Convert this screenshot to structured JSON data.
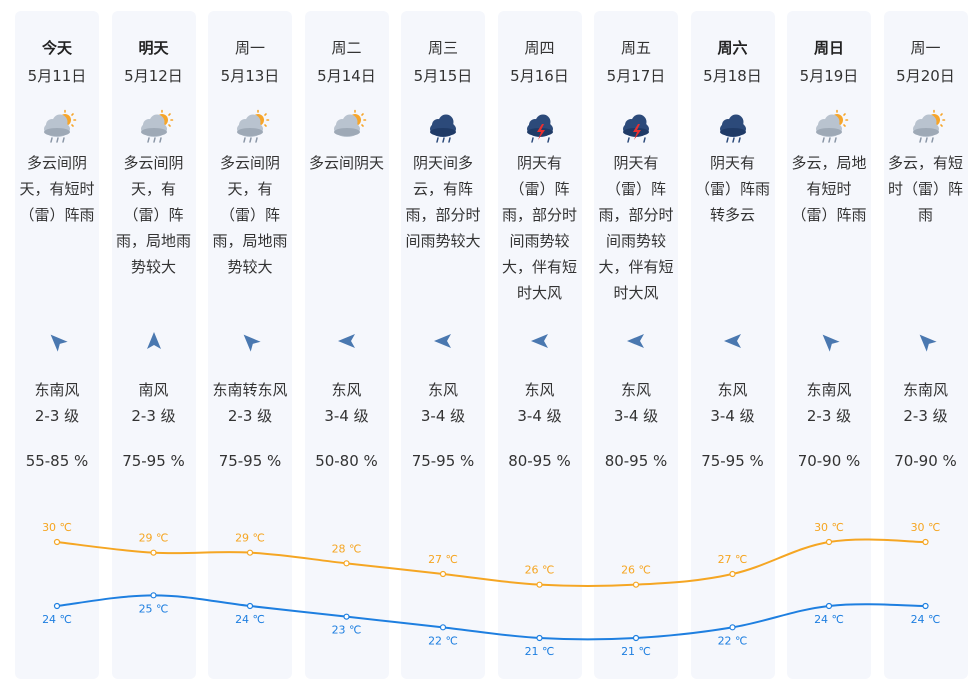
{
  "colors": {
    "high_line": "#f5a623",
    "low_line": "#1e7fe0",
    "column_bg": "#f5f7fc",
    "wind_arrow": "#4a78b0"
  },
  "days": [
    {
      "name": "今天",
      "bold": true,
      "date": "5月11日",
      "icon": "partly-cloudy-rain-icon",
      "desc": "多云间阴天，有短时（雷）阵雨",
      "wind_dir": "东南风",
      "wind_level": "2-3 级",
      "wind_arrow": "southeast-wind-arrow-icon",
      "humidity": "55-85 %"
    },
    {
      "name": "明天",
      "bold": true,
      "date": "5月12日",
      "icon": "partly-cloudy-rain-icon",
      "desc": "多云间阴天，有（雷）阵雨，局地雨势较大",
      "wind_dir": "南风",
      "wind_level": "2-3 级",
      "wind_arrow": "south-wind-arrow-icon",
      "humidity": "75-95 %"
    },
    {
      "name": "周一",
      "bold": false,
      "date": "5月13日",
      "icon": "partly-cloudy-rain-icon",
      "desc": "多云间阴天，有（雷）阵雨，局地雨势较大",
      "wind_dir": "东南转东风",
      "wind_level": "2-3 级",
      "wind_arrow": "southeast-wind-arrow-icon",
      "humidity": "75-95 %"
    },
    {
      "name": "周二",
      "bold": false,
      "date": "5月14日",
      "icon": "partly-cloudy-icon",
      "desc": "多云间阴天",
      "wind_dir": "东风",
      "wind_level": "3-4 级",
      "wind_arrow": "east-wind-arrow-icon",
      "humidity": "50-80 %"
    },
    {
      "name": "周三",
      "bold": false,
      "date": "5月15日",
      "icon": "rain-cloud-icon",
      "desc": "阴天间多云，有阵雨，部分时间雨势较大",
      "wind_dir": "东风",
      "wind_level": "3-4 级",
      "wind_arrow": "east-wind-arrow-icon",
      "humidity": "75-95 %"
    },
    {
      "name": "周四",
      "bold": false,
      "date": "5月16日",
      "icon": "thunderstorm-icon",
      "desc": "阴天有（雷）阵雨，部分时间雨势较大，伴有短时大风",
      "wind_dir": "东风",
      "wind_level": "3-4 级",
      "wind_arrow": "east-wind-arrow-icon",
      "humidity": "80-95 %"
    },
    {
      "name": "周五",
      "bold": false,
      "date": "5月17日",
      "icon": "thunderstorm-icon",
      "desc": "阴天有（雷）阵雨，部分时间雨势较大，伴有短时大风",
      "wind_dir": "东风",
      "wind_level": "3-4 级",
      "wind_arrow": "east-wind-arrow-icon",
      "humidity": "80-95 %"
    },
    {
      "name": "周六",
      "bold": true,
      "date": "5月18日",
      "icon": "rain-cloud-icon",
      "desc": "阴天有（雷）阵雨转多云",
      "wind_dir": "东风",
      "wind_level": "3-4 级",
      "wind_arrow": "east-wind-arrow-icon",
      "humidity": "75-95 %"
    },
    {
      "name": "周日",
      "bold": true,
      "date": "5月19日",
      "icon": "partly-cloudy-rain-icon",
      "desc": "多云，局地有短时（雷）阵雨",
      "wind_dir": "东南风",
      "wind_level": "2-3 级",
      "wind_arrow": "southeast-wind-arrow-icon",
      "humidity": "70-90 %"
    },
    {
      "name": "周一",
      "bold": false,
      "date": "5月20日",
      "icon": "partly-cloudy-rain-icon",
      "desc": "多云，有短时（雷）阵雨",
      "wind_dir": "东南风",
      "wind_level": "2-3 级",
      "wind_arrow": "southeast-wind-arrow-icon",
      "humidity": "70-90 %"
    }
  ],
  "chart_data": {
    "type": "line",
    "x": [
      "5月11日",
      "5月12日",
      "5月13日",
      "5月14日",
      "5月15日",
      "5月16日",
      "5月17日",
      "5月18日",
      "5月19日",
      "5月20日"
    ],
    "series": [
      {
        "values": [
          30,
          29,
          29,
          28,
          27,
          26,
          26,
          27,
          30,
          30
        ],
        "labels": [
          "30 ℃",
          "29 ℃",
          "29 ℃",
          "28 ℃",
          "27 ℃",
          "26 ℃",
          "26 ℃",
          "27 ℃",
          "30 ℃",
          "30 ℃"
        ],
        "color": "#f5a623",
        "label_position": "above"
      },
      {
        "values": [
          24,
          25,
          24,
          23,
          22,
          21,
          21,
          22,
          24,
          24
        ],
        "labels": [
          "24 ℃",
          "25 ℃",
          "24 ℃",
          "23 ℃",
          "22 ℃",
          "21 ℃",
          "21 ℃",
          "22 ℃",
          "24 ℃",
          "24 ℃"
        ],
        "color": "#1e7fe0",
        "label_position": "below"
      }
    ],
    "unit": "℃",
    "grid": false,
    "legend": "none"
  }
}
